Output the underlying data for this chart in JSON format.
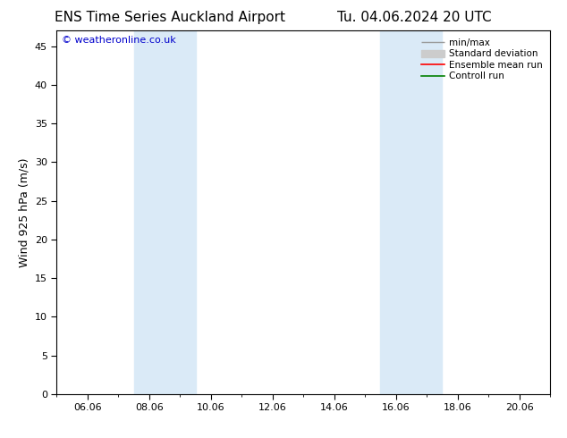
{
  "title_left": "ENS Time Series Auckland Airport",
  "title_right": "Tu. 04.06.2024 20 UTC",
  "ylabel": "Wind 925 hPa (m/s)",
  "watermark": "© weatheronline.co.uk",
  "x_tick_labels": [
    "06.06",
    "08.06",
    "10.06",
    "12.06",
    "14.06",
    "16.06",
    "18.06",
    "20.06"
  ],
  "x_tick_positions": [
    0,
    2,
    4,
    6,
    8,
    10,
    12,
    14
  ],
  "x_min": -1,
  "x_max": 15,
  "y_min": 0,
  "y_max": 47,
  "y_ticks": [
    0,
    5,
    10,
    15,
    20,
    25,
    30,
    35,
    40,
    45
  ],
  "shaded_bands": [
    {
      "x_start": 1.5,
      "x_end": 3.5
    },
    {
      "x_start": 9.5,
      "x_end": 11.5
    }
  ],
  "shade_color": "#daeaf7",
  "background_color": "#ffffff",
  "title_fontsize": 11,
  "axis_label_fontsize": 9,
  "tick_fontsize": 8,
  "watermark_color": "#0000cc",
  "watermark_fontsize": 8,
  "legend_fontsize": 7.5,
  "minmax_color": "#999999",
  "stddev_color": "#cccccc",
  "ensemble_color": "#ff0000",
  "control_color": "#008000"
}
